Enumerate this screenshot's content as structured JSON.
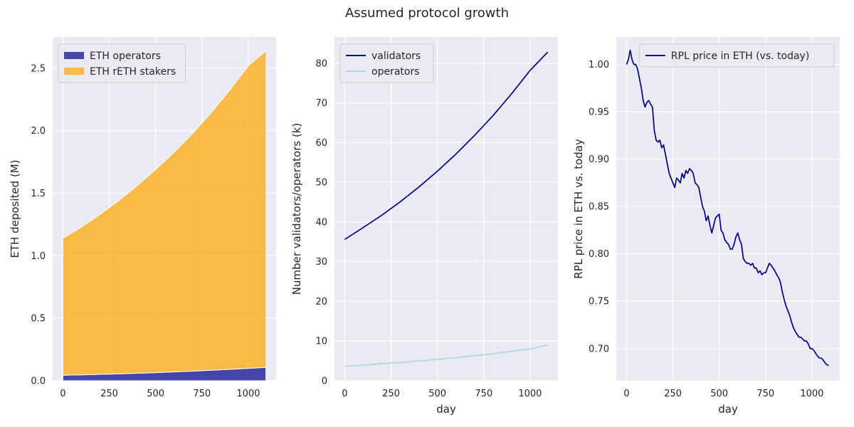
{
  "figure": {
    "title": "Assumed protocol growth"
  },
  "chart_data": [
    {
      "type": "area",
      "stacked": true,
      "title": "",
      "xlabel": "",
      "ylabel": "ETH deposited (M)",
      "xlim": [
        -55,
        1150
      ],
      "ylim": [
        0,
        2.75
      ],
      "x_ticks": [
        0,
        250,
        500,
        750,
        1000
      ],
      "y_ticks": [
        0.0,
        0.5,
        1.0,
        1.5,
        2.0,
        2.5
      ],
      "x_tick_labels": [
        "0",
        "250",
        "500",
        "750",
        "1000"
      ],
      "y_tick_labels": [
        "0.0",
        "0.5",
        "1.0",
        "1.5",
        "2.0",
        "2.5"
      ],
      "grid": true,
      "legend": "top-left",
      "x": [
        0,
        100,
        200,
        300,
        400,
        500,
        600,
        700,
        800,
        900,
        1000,
        1095
      ],
      "series": [
        {
          "name": "ETH operators",
          "color": "#00008b",
          "values": [
            0.044,
            0.047,
            0.051,
            0.055,
            0.06,
            0.065,
            0.071,
            0.077,
            0.084,
            0.091,
            0.099,
            0.107
          ]
        },
        {
          "name": "ETH rETH stakers",
          "color": "#ffa500",
          "values": [
            1.096,
            1.183,
            1.279,
            1.385,
            1.5,
            1.624,
            1.757,
            1.902,
            2.061,
            2.234,
            2.421,
            2.533
          ]
        }
      ]
    },
    {
      "type": "line",
      "title": "",
      "xlabel": "day",
      "ylabel": "Number validators/operators (k)",
      "xlim": [
        -55,
        1150
      ],
      "ylim": [
        0,
        86.6
      ],
      "x_ticks": [
        0,
        250,
        500,
        750,
        1000
      ],
      "y_ticks": [
        0,
        10,
        20,
        30,
        40,
        50,
        60,
        70,
        80
      ],
      "x_tick_labels": [
        "0",
        "250",
        "500",
        "750",
        "1000"
      ],
      "y_tick_labels": [
        "0",
        "10",
        "20",
        "30",
        "40",
        "50",
        "60",
        "70",
        "80"
      ],
      "grid": true,
      "legend": "top-left",
      "x": [
        0,
        100,
        200,
        300,
        400,
        500,
        600,
        700,
        800,
        900,
        1000,
        1095
      ],
      "series": [
        {
          "name": "validators",
          "color": "#00008b",
          "values": [
            35.6,
            38.6,
            41.7,
            45.1,
            48.8,
            52.8,
            57.1,
            61.8,
            66.8,
            72.3,
            78.2,
            82.8
          ]
        },
        {
          "name": "operators",
          "color": "#add8e6",
          "values": [
            3.6,
            3.9,
            4.3,
            4.6,
            5.0,
            5.4,
            5.8,
            6.3,
            6.8,
            7.4,
            8.0,
            9.0
          ]
        }
      ]
    },
    {
      "type": "line",
      "title": "",
      "xlabel": "day",
      "ylabel": "RPL price in ETH vs. today",
      "xlim": [
        -55,
        1150
      ],
      "ylim": [
        0.666,
        1.029
      ],
      "x_ticks": [
        0,
        250,
        500,
        750,
        1000
      ],
      "y_ticks": [
        0.7,
        0.75,
        0.8,
        0.85,
        0.9,
        0.95,
        1.0
      ],
      "x_tick_labels": [
        "0",
        "250",
        "500",
        "750",
        "1000"
      ],
      "y_tick_labels": [
        "0.70",
        "0.75",
        "0.80",
        "0.85",
        "0.90",
        "0.95",
        "1.00"
      ],
      "grid": true,
      "legend": "top-right",
      "x": [
        0,
        10,
        20,
        30,
        40,
        50,
        60,
        70,
        80,
        90,
        100,
        110,
        120,
        130,
        140,
        150,
        160,
        170,
        180,
        190,
        200,
        210,
        220,
        230,
        240,
        250,
        260,
        270,
        280,
        290,
        300,
        310,
        320,
        330,
        340,
        350,
        360,
        370,
        380,
        390,
        400,
        410,
        420,
        430,
        440,
        450,
        460,
        470,
        480,
        490,
        500,
        510,
        520,
        530,
        540,
        550,
        560,
        570,
        580,
        590,
        600,
        610,
        620,
        630,
        640,
        650,
        660,
        670,
        680,
        690,
        700,
        710,
        720,
        730,
        740,
        750,
        760,
        770,
        780,
        790,
        800,
        810,
        820,
        830,
        840,
        850,
        860,
        870,
        880,
        890,
        900,
        910,
        920,
        930,
        940,
        950,
        960,
        970,
        980,
        990,
        1000,
        1010,
        1020,
        1030,
        1040,
        1050,
        1060,
        1070,
        1080,
        1090
      ],
      "series": [
        {
          "name": "RPL price in ETH (vs. today)",
          "color": "#00008b",
          "values": [
            1.0,
            1.005,
            1.015,
            1.005,
            1.0,
            1.0,
            0.995,
            0.985,
            0.975,
            0.962,
            0.955,
            0.96,
            0.962,
            0.958,
            0.955,
            0.93,
            0.92,
            0.918,
            0.92,
            0.912,
            0.915,
            0.905,
            0.895,
            0.885,
            0.88,
            0.875,
            0.87,
            0.88,
            0.878,
            0.875,
            0.885,
            0.88,
            0.888,
            0.885,
            0.89,
            0.888,
            0.885,
            0.875,
            0.873,
            0.87,
            0.86,
            0.85,
            0.845,
            0.835,
            0.84,
            0.83,
            0.822,
            0.83,
            0.838,
            0.84,
            0.842,
            0.825,
            0.822,
            0.815,
            0.812,
            0.81,
            0.805,
            0.805,
            0.81,
            0.818,
            0.822,
            0.815,
            0.81,
            0.795,
            0.792,
            0.79,
            0.79,
            0.788,
            0.79,
            0.785,
            0.785,
            0.78,
            0.782,
            0.778,
            0.78,
            0.78,
            0.785,
            0.79,
            0.788,
            0.785,
            0.782,
            0.778,
            0.775,
            0.77,
            0.76,
            0.752,
            0.745,
            0.74,
            0.735,
            0.728,
            0.722,
            0.718,
            0.715,
            0.712,
            0.712,
            0.71,
            0.708,
            0.708,
            0.705,
            0.7,
            0.7,
            0.698,
            0.695,
            0.692,
            0.69,
            0.69,
            0.688,
            0.685,
            0.683,
            0.682
          ]
        }
      ]
    }
  ]
}
